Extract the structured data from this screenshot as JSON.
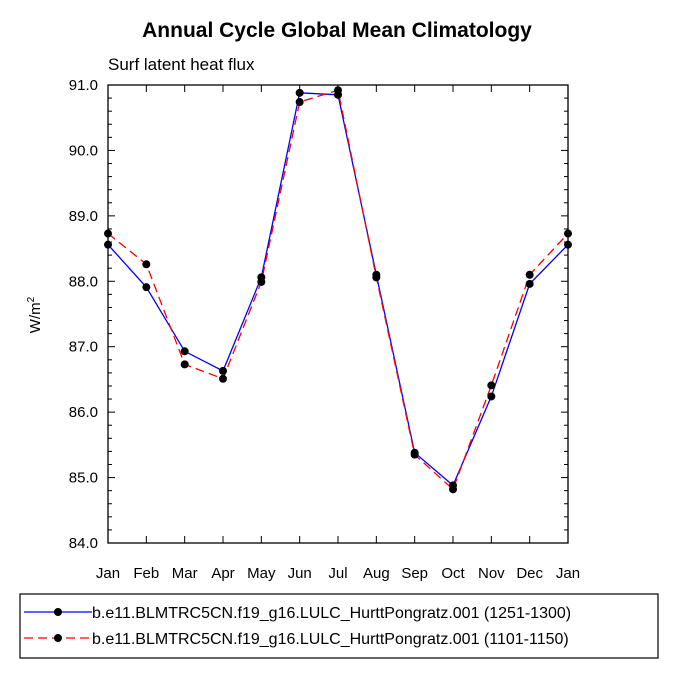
{
  "chart_data": {
    "type": "line",
    "title": "Annual Cycle Global Mean Climatology",
    "subtitle": "Surf latent heat flux",
    "xlabel": "",
    "ylabel": "W/m",
    "ylabel_sup": "2",
    "ylim": [
      84.0,
      91.0
    ],
    "yticks": [
      "84.0",
      "85.0",
      "86.0",
      "87.0",
      "88.0",
      "89.0",
      "90.0",
      "91.0"
    ],
    "categories": [
      "Jan",
      "Feb",
      "Mar",
      "Apr",
      "May",
      "Jun",
      "Jul",
      "Aug",
      "Sep",
      "Oct",
      "Nov",
      "Dec",
      "Jan"
    ],
    "series": [
      {
        "name": "b.e11.BLMTRC5CN.f19_g16.LULC_HurttPongratz.001 (1251-1300)",
        "color": "#0000ff",
        "dash": "solid",
        "values": [
          88.56,
          87.91,
          86.93,
          86.63,
          88.06,
          90.88,
          90.85,
          88.1,
          85.38,
          84.88,
          86.24,
          87.96,
          88.56
        ]
      },
      {
        "name": "b.e11.BLMTRC5CN.f19_g16.LULC_HurttPongratz.001 (1101-1150)",
        "color": "#ff0000",
        "dash": "dashed",
        "values": [
          88.73,
          88.26,
          86.73,
          86.51,
          87.99,
          90.74,
          90.92,
          88.06,
          85.35,
          84.82,
          86.41,
          88.1,
          88.73
        ]
      }
    ],
    "legend_position": "bottom"
  }
}
